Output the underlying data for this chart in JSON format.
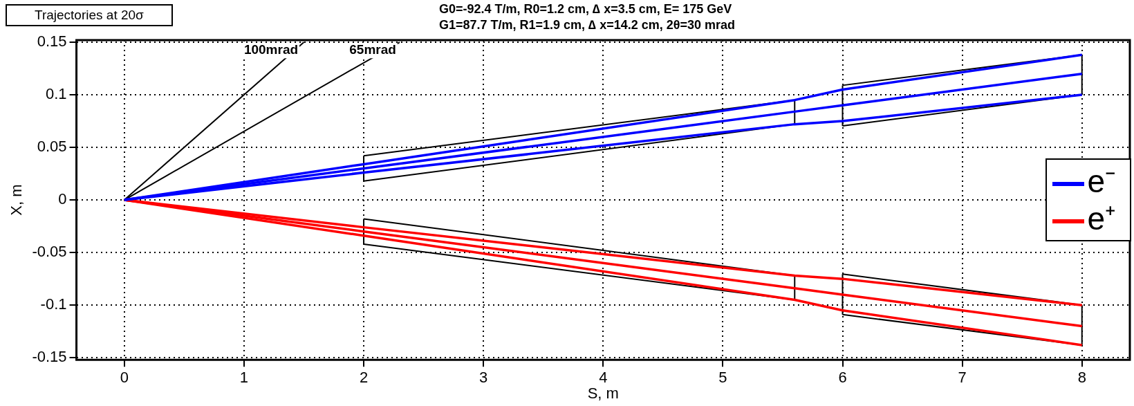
{
  "chart_data": {
    "type": "line",
    "title": "Trajectories at 20σ",
    "subtitle": "G0=-92.4 T/m, R0=1.2 cm, ∆ x=3.5 cm,  E= 175 GeV\nG1=87.7 T/m,  R1=1.9 cm, ∆ x=14.2 cm, 2θ=30 mrad",
    "xlabel": "S, m",
    "ylabel": "X, m",
    "xlim": [
      -0.4,
      8.4
    ],
    "ylim": [
      -0.152,
      0.152
    ],
    "xticks": [
      0,
      1,
      2,
      3,
      4,
      5,
      6,
      7,
      8
    ],
    "yticks": [
      -0.15,
      -0.1,
      -0.05,
      0,
      0.05,
      0.1,
      0.15
    ],
    "grid": true,
    "legend": "right",
    "marker": "none",
    "line_style": "solid",
    "annotations": [
      "100mrad",
      "65mrad"
    ],
    "series": [
      {
        "name": "e⁻",
        "color": "#0000ff",
        "x": [
          0,
          2,
          5.6,
          6,
          8
        ],
        "values": [
          0,
          0.03,
          0.084,
          0.09,
          0.12
        ]
      },
      {
        "color": "#0000ff",
        "x": [
          0,
          2,
          5.6,
          6,
          8
        ],
        "values": [
          0,
          0.034,
          0.095,
          0.105,
          0.138
        ]
      },
      {
        "color": "#0000ff",
        "x": [
          0,
          2,
          5.6,
          6,
          8
        ],
        "values": [
          0,
          0.026,
          0.072,
          0.075,
          0.1
        ]
      },
      {
        "name": "e⁺",
        "color": "#ff0000",
        "x": [
          0,
          2,
          5.6,
          6,
          8
        ],
        "values": [
          0,
          -0.03,
          -0.084,
          -0.09,
          -0.12
        ]
      },
      {
        "color": "#ff0000",
        "x": [
          0,
          2,
          5.6,
          6,
          8
        ],
        "values": [
          0,
          -0.026,
          -0.072,
          -0.075,
          -0.1
        ]
      },
      {
        "color": "#ff0000",
        "x": [
          0,
          2,
          5.6,
          6,
          8
        ],
        "values": [
          0,
          -0.034,
          -0.095,
          -0.105,
          -0.138
        ]
      },
      {
        "color": "#000000",
        "x": [
          2,
          5.6
        ],
        "values": [
          0.042,
          0.095
        ]
      },
      {
        "color": "#000000",
        "x": [
          2,
          5.6
        ],
        "values": [
          0.018,
          0.072
        ]
      },
      {
        "color": "#000000",
        "x": [
          6,
          8
        ],
        "values": [
          0.109,
          0.138
        ]
      },
      {
        "color": "#000000",
        "x": [
          6,
          8
        ],
        "values": [
          0.0705,
          0.1
        ]
      },
      {
        "color": "#000000",
        "x": [
          2,
          5.6
        ],
        "values": [
          -0.018,
          -0.072
        ]
      },
      {
        "color": "#000000",
        "x": [
          2,
          5.6
        ],
        "values": [
          -0.042,
          -0.095
        ]
      },
      {
        "color": "#000000",
        "x": [
          6,
          8
        ],
        "values": [
          -0.0705,
          -0.1
        ]
      },
      {
        "color": "#000000",
        "x": [
          6,
          8
        ],
        "values": [
          -0.109,
          -0.138
        ]
      },
      {
        "color": "#000000",
        "x": [
          2,
          2
        ],
        "values": [
          0.018,
          0.042
        ]
      },
      {
        "color": "#000000",
        "x": [
          5.6,
          5.6
        ],
        "values": [
          0.072,
          0.095
        ]
      },
      {
        "color": "#000000",
        "x": [
          6,
          6
        ],
        "values": [
          0.0705,
          0.109
        ]
      },
      {
        "color": "#000000",
        "x": [
          8,
          8
        ],
        "values": [
          0.1,
          0.138
        ]
      },
      {
        "color": "#000000",
        "x": [
          2,
          2
        ],
        "values": [
          -0.042,
          -0.018
        ]
      },
      {
        "color": "#000000",
        "x": [
          5.6,
          5.6
        ],
        "values": [
          -0.095,
          -0.072
        ]
      },
      {
        "color": "#000000",
        "x": [
          6,
          6
        ],
        "values": [
          -0.109,
          -0.0705
        ]
      },
      {
        "color": "#000000",
        "x": [
          8,
          8
        ],
        "values": [
          -0.138,
          -0.1
        ]
      },
      {
        "color": "#000000",
        "x": [
          0,
          1.5
        ],
        "values": [
          0,
          0.15
        ]
      },
      {
        "color": "#000000",
        "x": [
          0,
          2.3
        ],
        "values": [
          0,
          0.15
        ]
      }
    ]
  }
}
